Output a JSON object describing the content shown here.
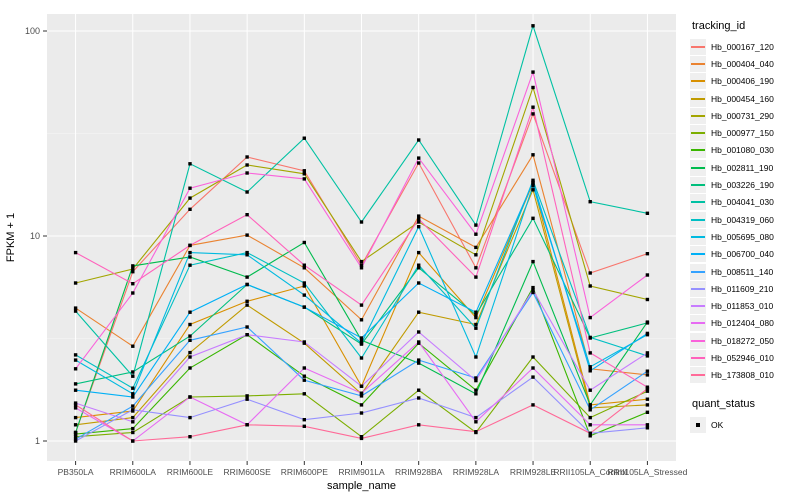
{
  "chart_data": {
    "type": "line",
    "title": "",
    "xlabel": "sample_name",
    "ylabel": "FPKM + 1",
    "y_scale": "log10",
    "y_ticks": [
      1,
      10,
      100
    ],
    "y_tick_labels": [
      "1",
      "10",
      "100"
    ],
    "ylim": [
      0.8,
      121
    ],
    "grid": "major-white-minor-faint-on-gray-panel",
    "legend_position": "right",
    "point_shape": "square",
    "point_color": "#000000",
    "categories": [
      "PB350LA",
      "RRIM600LA",
      "RRIM600LE",
      "RRIM600SE",
      "RRIM600PE",
      "RRIM901LA",
      "RRIM928BA",
      "RRIM928LA",
      "RRIM928LE",
      "RRII105LA_Control",
      "RRII105LA_Stressed"
    ],
    "legend": {
      "series_title": "tracking_id",
      "shape_title": "quant_status",
      "shape_label": "OK"
    },
    "series": [
      {
        "name": "Hb_000167_120",
        "color": "#F8766D",
        "values": [
          1.1,
          6.7,
          13.5,
          24.3,
          20.8,
          7.2,
          22.7,
          7.0,
          39.4,
          6.6,
          8.2
        ]
      },
      {
        "name": "Hb_000404_040",
        "color": "#EA8331",
        "values": [
          4.45,
          2.9,
          9.0,
          10.1,
          7.0,
          3.9,
          12.5,
          8.8,
          24.9,
          2.25,
          2.1
        ]
      },
      {
        "name": "Hb_000406_190",
        "color": "#D89000",
        "values": [
          1.3,
          1.4,
          3.7,
          4.8,
          5.7,
          1.85,
          8.3,
          4.0,
          18.1,
          1.5,
          1.6
        ]
      },
      {
        "name": "Hb_000454_160",
        "color": "#C09B00",
        "values": [
          1.2,
          1.3,
          2.7,
          4.6,
          3.0,
          1.7,
          4.25,
          3.7,
          16.8,
          1.45,
          1.5
        ]
      },
      {
        "name": "Hb_000731_290",
        "color": "#A3A500",
        "values": [
          5.9,
          6.9,
          15.3,
          22.2,
          20.1,
          7.5,
          11.7,
          8.1,
          53.0,
          5.7,
          4.9
        ]
      },
      {
        "name": "Hb_000977_150",
        "color": "#7CAE00",
        "values": [
          1.05,
          1.1,
          1.64,
          1.66,
          1.7,
          1.05,
          1.77,
          1.1,
          2.57,
          1.3,
          1.75
        ]
      },
      {
        "name": "Hb_001080_030",
        "color": "#39B600",
        "values": [
          1.08,
          1.15,
          2.27,
          3.3,
          2.07,
          1.5,
          3.0,
          1.77,
          5.6,
          1.06,
          1.38
        ]
      },
      {
        "name": "Hb_002811_190",
        "color": "#00BB4E",
        "values": [
          1.1,
          7.15,
          7.9,
          6.3,
          9.3,
          3.1,
          2.4,
          1.7,
          7.5,
          1.5,
          3.8
        ]
      },
      {
        "name": "Hb_003226_190",
        "color": "#00BF7D",
        "values": [
          1.9,
          2.17,
          3.25,
          5.8,
          4.5,
          2.97,
          7.0,
          4.12,
          12.2,
          3.18,
          3.77
        ]
      },
      {
        "name": "Hb_004041_030",
        "color": "#00C1A3",
        "values": [
          4.3,
          2.07,
          22.5,
          16.4,
          30.0,
          11.7,
          29.4,
          11.3,
          106.0,
          14.7,
          12.9
        ]
      },
      {
        "name": "Hb_004319_060",
        "color": "#00BFC4",
        "values": [
          2.63,
          1.81,
          7.2,
          8.3,
          5.9,
          2.54,
          7.2,
          3.55,
          18.7,
          3.2,
          2.6
        ]
      },
      {
        "name": "Hb_005695_080",
        "color": "#00BAE0",
        "values": [
          2.48,
          1.7,
          8.3,
          8.1,
          5.15,
          3.0,
          11.1,
          2.57,
          17.6,
          2.3,
          3.3
        ]
      },
      {
        "name": "Hb_006700_040",
        "color": "#00B0F6",
        "values": [
          1.77,
          1.64,
          4.25,
          5.8,
          4.5,
          3.18,
          5.9,
          4.25,
          18.3,
          2.2,
          3.35
        ]
      },
      {
        "name": "Hb_008511_140",
        "color": "#35A2FF",
        "values": [
          1.02,
          1.48,
          3.1,
          3.6,
          1.98,
          1.66,
          2.48,
          2.03,
          5.3,
          1.42,
          2.19
        ]
      },
      {
        "name": "Hb_011609_210",
        "color": "#9590FF",
        "values": [
          1.0,
          1.42,
          1.3,
          1.6,
          1.27,
          1.37,
          1.62,
          1.3,
          2.05,
          1.09,
          1.16
        ]
      },
      {
        "name": "Hb_011853_010",
        "color": "#C77CFF",
        "values": [
          1.53,
          1.24,
          2.57,
          3.3,
          3.04,
          1.85,
          3.4,
          1.97,
          5.45,
          1.77,
          2.69
        ]
      },
      {
        "name": "Hb_012404_080",
        "color": "#E76BF3",
        "values": [
          1.45,
          1.0,
          1.64,
          1.2,
          2.27,
          1.71,
          3.04,
          1.24,
          2.27,
          1.2,
          1.2
        ]
      },
      {
        "name": "Hb_018272_050",
        "color": "#FA62DB",
        "values": [
          2.25,
          5.27,
          17.1,
          20.3,
          19.0,
          7.0,
          24.0,
          10.2,
          63.0,
          4.0,
          6.45
        ]
      },
      {
        "name": "Hb_052946_010",
        "color": "#FF62BC",
        "values": [
          8.3,
          5.85,
          9.0,
          12.7,
          7.2,
          4.6,
          12.1,
          6.3,
          42.5,
          2.69,
          1.83
        ]
      },
      {
        "name": "Hb_173808_010",
        "color": "#FF6A98",
        "values": [
          1.5,
          1.0,
          1.05,
          1.2,
          1.18,
          1.03,
          1.2,
          1.11,
          1.5,
          1.09,
          1.8
        ]
      }
    ]
  },
  "colors": {
    "panel_bg": "#EBEBEB",
    "grid_major": "#FFFFFF",
    "grid_minor": "#F5F5F5",
    "axis_text": "#4D4D4D",
    "axis_title": "#000000",
    "tick_mark": "#333333",
    "figure_bg": "#FFFFFF",
    "legend_key_bg": "#EFEFEF"
  }
}
